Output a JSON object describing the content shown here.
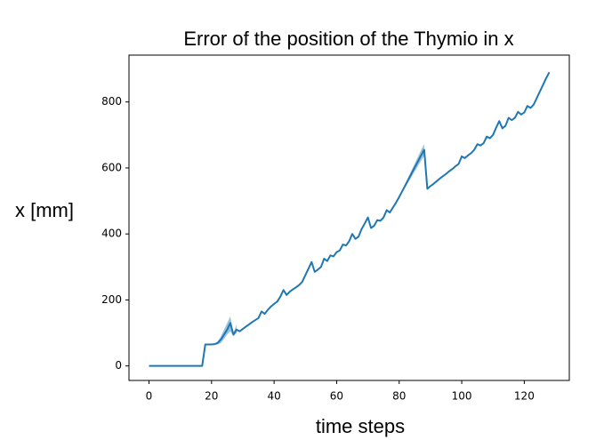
{
  "chart_data": {
    "type": "line",
    "title": "Error of the position of the Thymio in x",
    "x_label": "time steps",
    "y_label": "x [mm]",
    "x": [
      0,
      1,
      2,
      3,
      4,
      5,
      6,
      7,
      8,
      9,
      10,
      11,
      12,
      13,
      14,
      15,
      16,
      17,
      18,
      19,
      20,
      21,
      22,
      23,
      24,
      25,
      26,
      27,
      28,
      29,
      30,
      31,
      32,
      33,
      34,
      35,
      36,
      37,
      38,
      39,
      40,
      41,
      42,
      43,
      44,
      45,
      46,
      47,
      48,
      49,
      50,
      51,
      52,
      53,
      54,
      55,
      56,
      57,
      58,
      59,
      60,
      61,
      62,
      63,
      64,
      65,
      66,
      67,
      68,
      69,
      70,
      71,
      72,
      73,
      74,
      75,
      76,
      77,
      78,
      79,
      80,
      81,
      82,
      83,
      84,
      85,
      86,
      87,
      88,
      89,
      90,
      91,
      92,
      93,
      94,
      95,
      96,
      97,
      98,
      99,
      100,
      101,
      102,
      103,
      104,
      105,
      106,
      107,
      108,
      109,
      110,
      111,
      112,
      113,
      114,
      115,
      116,
      117,
      118,
      119,
      120,
      121,
      122,
      123,
      124,
      125,
      126,
      127,
      128
    ],
    "series": [
      {
        "color": "#1f77b4",
        "values": [
          0,
          0,
          0,
          0,
          0,
          0,
          0,
          0,
          0,
          0,
          0,
          0,
          0,
          0,
          0,
          0,
          0,
          0,
          65,
          65,
          65,
          66,
          70,
          80,
          95,
          110,
          130,
          95,
          110,
          105,
          112,
          119,
          126,
          133,
          139,
          145,
          165,
          158,
          170,
          180,
          188,
          195,
          210,
          230,
          215,
          225,
          232,
          238,
          245,
          255,
          275,
          295,
          315,
          285,
          292,
          300,
          325,
          318,
          335,
          332,
          345,
          350,
          368,
          365,
          378,
          400,
          385,
          392,
          415,
          432,
          450,
          418,
          425,
          442,
          440,
          450,
          472,
          465,
          480,
          495,
          512,
          530,
          548,
          566,
          584,
          602,
          620,
          638,
          655,
          537,
          545,
          552,
          560,
          568,
          575,
          582,
          590,
          597,
          605,
          612,
          635,
          630,
          638,
          645,
          655,
          672,
          668,
          675,
          695,
          690,
          700,
          722,
          742,
          720,
          728,
          752,
          745,
          752,
          770,
          762,
          768,
          788,
          782,
          792,
          812,
          832,
          852,
          872,
          890
        ]
      }
    ],
    "bands": [
      {
        "color": "#1f77b4",
        "x": [
          20,
          21,
          22,
          23,
          24,
          25,
          26,
          27,
          28
        ],
        "lower": [
          65,
          65,
          65,
          70,
          82,
          95,
          105,
          90,
          100
        ],
        "upper": [
          65,
          67,
          75,
          90,
          110,
          130,
          150,
          100,
          125
        ]
      },
      {
        "color": "#1f77b4",
        "x": [
          79,
          80,
          81,
          82,
          83,
          84,
          85,
          86,
          87,
          88
        ],
        "lower": [
          495,
          510,
          526,
          542,
          558,
          574,
          590,
          606,
          622,
          637
        ],
        "upper": [
          495,
          514,
          534,
          554,
          574,
          594,
          614,
          634,
          654,
          673
        ]
      }
    ],
    "xlim": [
      -6.4,
      134.4
    ],
    "ylim": [
      -44,
      942
    ],
    "xticks": [
      0,
      20,
      40,
      60,
      80,
      100,
      120
    ],
    "yticks": [
      0,
      200,
      400,
      600,
      800
    ],
    "grid": false
  }
}
